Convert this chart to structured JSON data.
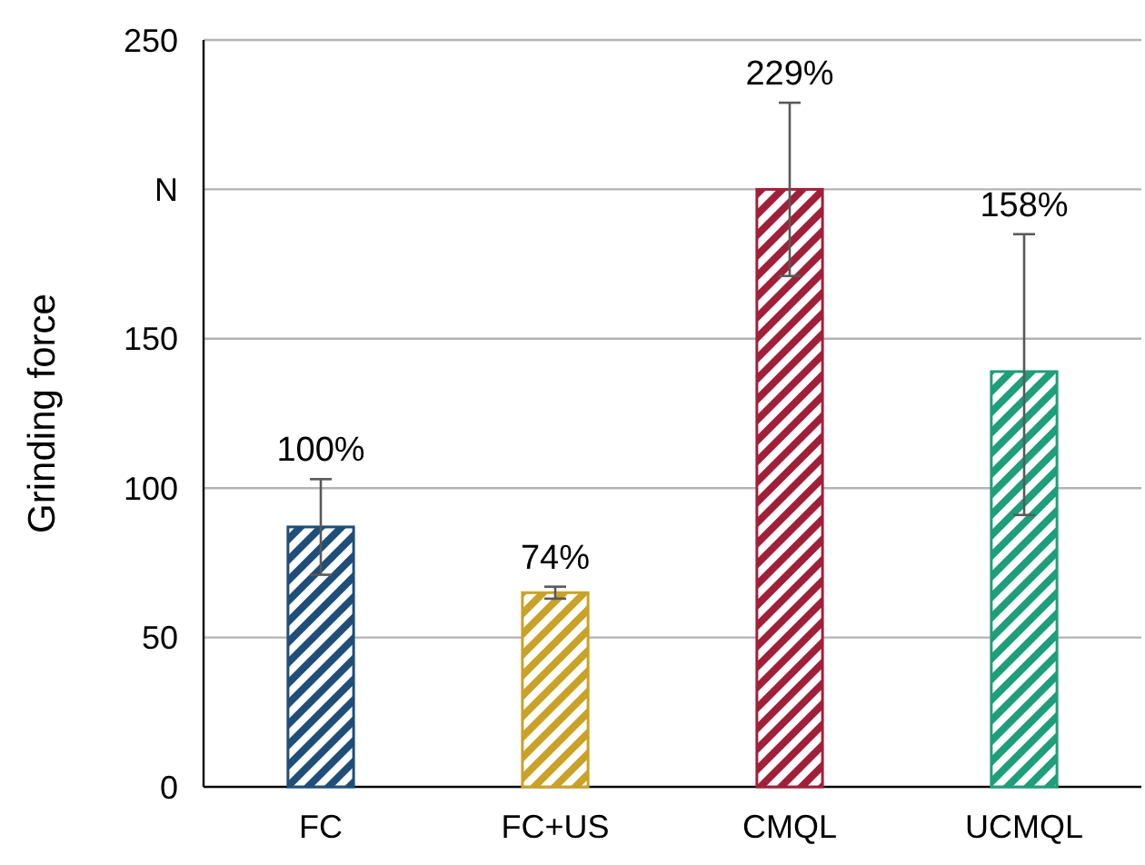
{
  "chart_data": {
    "type": "bar",
    "ylabel": "Grinding force",
    "categories": [
      "FC",
      "FC+US",
      "CMQL",
      "UCMQL"
    ],
    "values": [
      87,
      65,
      200,
      139
    ],
    "colors": [
      "#1f4e79",
      "#c9a227",
      "#a0203a",
      "#1e9e7a"
    ],
    "errors": [
      [
        71,
        103
      ],
      [
        63,
        67
      ],
      [
        171,
        229
      ],
      [
        91,
        185
      ]
    ],
    "annotations": [
      {
        "text": "100%",
        "x": "FC",
        "y": 103
      },
      {
        "text": "74%",
        "x": "FC+US",
        "y": 67
      },
      {
        "text": "229%",
        "x": "CMQL",
        "y": 229
      },
      {
        "text": "158%",
        "x": "UCMQL",
        "y": 185
      }
    ],
    "ylim": [
      0,
      250
    ],
    "yticks": [
      0,
      50,
      100,
      150,
      {
        "value": 200,
        "label": "N"
      },
      250
    ],
    "grid": "y"
  }
}
